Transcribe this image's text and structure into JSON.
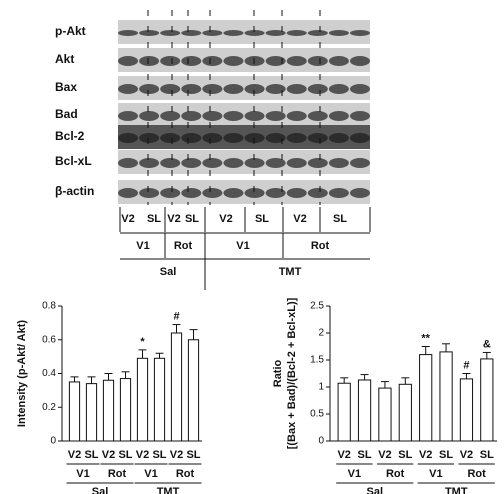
{
  "blot": {
    "rows": [
      "p-Akt",
      "Akt",
      "Bax",
      "Bad",
      "Bcl-2",
      "Bcl-xL",
      "β-actin"
    ],
    "lanes": [
      "V2",
      "SL",
      "V2",
      "SL",
      "V2",
      "SL",
      "V2",
      "SL"
    ],
    "groups": [
      "V1",
      "Rot",
      "V1",
      "Rot"
    ],
    "treatments": [
      "Sal",
      "TMT"
    ]
  },
  "chart_data": [
    {
      "type": "bar",
      "ylabel": [
        "Intensity (p-Akt/ Akt)"
      ],
      "categories": [
        "V2",
        "SL",
        "V2",
        "SL",
        "V2",
        "SL",
        "V2",
        "SL"
      ],
      "groups": [
        "V1",
        "Rot",
        "V1",
        "Rot"
      ],
      "supergroups": [
        "Sal",
        "TMT"
      ],
      "values": [
        0.35,
        0.34,
        0.36,
        0.37,
        0.49,
        0.49,
        0.64,
        0.6
      ],
      "errors": [
        0.03,
        0.04,
        0.04,
        0.04,
        0.05,
        0.03,
        0.05,
        0.06
      ],
      "annotations": [
        null,
        null,
        null,
        null,
        "*",
        null,
        "#",
        null
      ],
      "color": "#ffffff",
      "ylim": [
        0,
        0.8
      ],
      "yticks": [
        0,
        0.2,
        0.4,
        0.6,
        0.8
      ]
    },
    {
      "type": "bar",
      "ylabel": [
        "Ratio",
        "[(Bax + Bad)/(Bcl-2 + Bcl-xL)]"
      ],
      "categories": [
        "V2",
        "SL",
        "V2",
        "SL",
        "V2",
        "SL",
        "V2",
        "SL"
      ],
      "groups": [
        "V1",
        "Rot",
        "V1",
        "Rot"
      ],
      "supergroups": [
        "Sal",
        "TMT"
      ],
      "values": [
        1.07,
        1.13,
        0.98,
        1.05,
        1.6,
        1.65,
        1.15,
        1.52
      ],
      "errors": [
        0.1,
        0.1,
        0.12,
        0.12,
        0.15,
        0.15,
        0.1,
        0.12
      ],
      "annotations": [
        null,
        null,
        null,
        null,
        "**",
        null,
        "#",
        "&"
      ],
      "color": "#ffffff",
      "ylim": [
        0,
        2.5
      ],
      "yticks": [
        0,
        0.5,
        1,
        1.5,
        2,
        2.5
      ]
    }
  ]
}
